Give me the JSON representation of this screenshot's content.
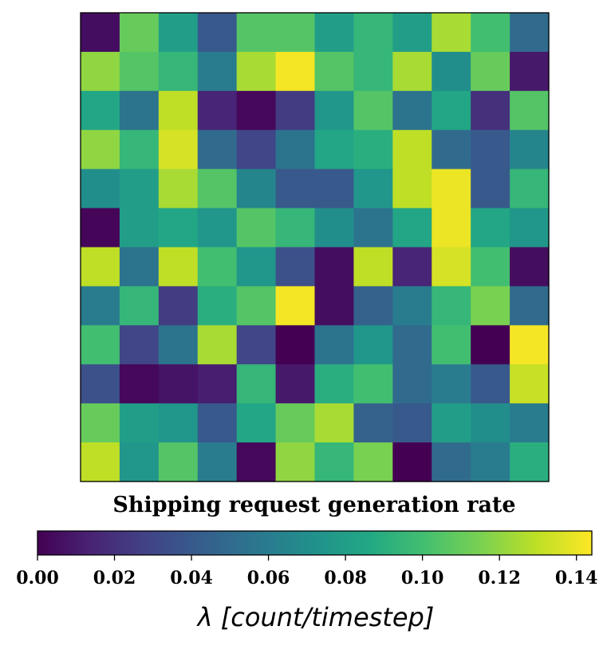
{
  "chart_data": {
    "type": "heatmap",
    "title": "Shipping request generation rate",
    "colorbar": {
      "label": "λ [count/timestep]",
      "range": [
        0,
        0.144
      ],
      "ticks": [
        "0.00",
        "0.02",
        "0.04",
        "0.06",
        "0.08",
        "0.10",
        "0.12",
        "0.14"
      ],
      "colormap": "viridis"
    },
    "rows": 12,
    "cols": 12,
    "values": [
      [
        0.005,
        0.11,
        0.08,
        0.04,
        0.105,
        0.105,
        0.08,
        0.095,
        0.08,
        0.125,
        0.1,
        0.05
      ],
      [
        0.12,
        0.105,
        0.095,
        0.06,
        0.125,
        0.142,
        0.105,
        0.095,
        0.125,
        0.07,
        0.11,
        0.01
      ],
      [
        0.085,
        0.055,
        0.13,
        0.015,
        0.003,
        0.025,
        0.075,
        0.105,
        0.055,
        0.085,
        0.02,
        0.105
      ],
      [
        0.12,
        0.095,
        0.135,
        0.05,
        0.03,
        0.055,
        0.085,
        0.09,
        0.13,
        0.05,
        0.04,
        0.065
      ],
      [
        0.07,
        0.08,
        0.125,
        0.105,
        0.065,
        0.04,
        0.04,
        0.075,
        0.13,
        0.14,
        0.04,
        0.095
      ],
      [
        0.002,
        0.08,
        0.085,
        0.075,
        0.105,
        0.095,
        0.07,
        0.055,
        0.085,
        0.14,
        0.085,
        0.075
      ],
      [
        0.13,
        0.055,
        0.13,
        0.1,
        0.075,
        0.035,
        0.005,
        0.13,
        0.015,
        0.135,
        0.1,
        0.005
      ],
      [
        0.06,
        0.095,
        0.025,
        0.09,
        0.105,
        0.142,
        0.005,
        0.045,
        0.06,
        0.095,
        0.115,
        0.05
      ],
      [
        0.1,
        0.03,
        0.055,
        0.125,
        0.03,
        0.0,
        0.055,
        0.075,
        0.05,
        0.1,
        0.0,
        0.142
      ],
      [
        0.035,
        0.003,
        0.008,
        0.012,
        0.095,
        0.01,
        0.09,
        0.1,
        0.05,
        0.06,
        0.04,
        0.132
      ],
      [
        0.11,
        0.08,
        0.075,
        0.04,
        0.085,
        0.11,
        0.125,
        0.045,
        0.04,
        0.08,
        0.07,
        0.06
      ],
      [
        0.13,
        0.075,
        0.105,
        0.06,
        0.003,
        0.12,
        0.095,
        0.115,
        0.0,
        0.05,
        0.06,
        0.09
      ]
    ]
  }
}
